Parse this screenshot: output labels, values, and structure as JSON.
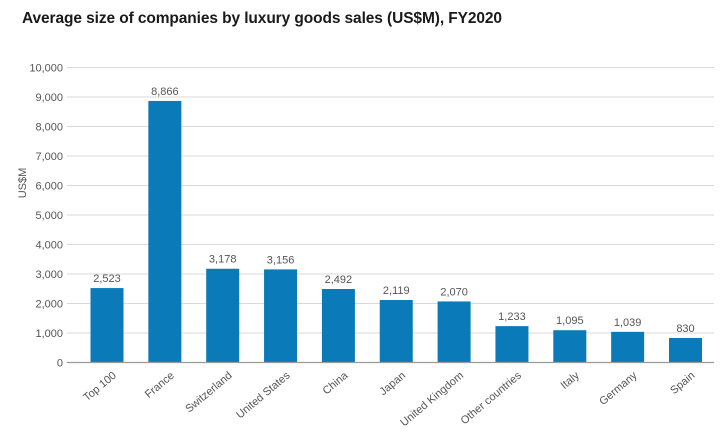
{
  "chart_data": {
    "type": "bar",
    "title": "Average size of companies by luxury goods sales (US$M), FY2020",
    "xlabel": "",
    "ylabel": "US$M",
    "ylim": [
      0,
      10000
    ],
    "yticks": [
      0,
      1000,
      2000,
      3000,
      4000,
      5000,
      6000,
      7000,
      8000,
      9000,
      10000
    ],
    "ytick_labels": [
      "0",
      "1,000",
      "2,000",
      "3,000",
      "4,000",
      "5,000",
      "6,000",
      "7,000",
      "8,000",
      "9,000",
      "10,000"
    ],
    "grid": true,
    "legend": "none",
    "bar_color": "#0a7ab8",
    "categories": [
      "Top 100",
      "France",
      "Switzerland",
      "United States",
      "China",
      "Japan",
      "United Kingdom",
      "Other countries",
      "Italy",
      "Germany",
      "Spain"
    ],
    "values": [
      2523,
      8866,
      3178,
      3156,
      2492,
      2119,
      2070,
      1233,
      1095,
      1039,
      830
    ],
    "value_labels": [
      "2,523",
      "8,866",
      "3,178",
      "3,156",
      "2,492",
      "2,119",
      "2,070",
      "1,233",
      "1,095",
      "1,039",
      "830"
    ]
  }
}
